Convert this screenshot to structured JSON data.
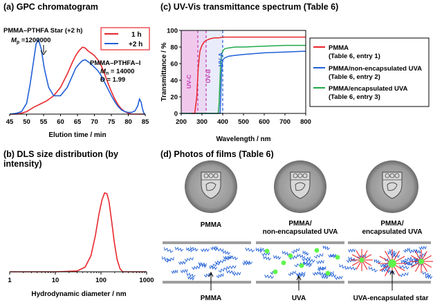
{
  "panels": {
    "a": {
      "title": "(a) GPC chromatogram"
    },
    "b": {
      "title_line1": "(b) DLS size distribution (by",
      "title_line2": "intensity)"
    },
    "c": {
      "title": "(c) UV-Vis transmittance spectrum (Table 6)"
    },
    "d": {
      "title": "(d) Photos of films (Table 6)"
    }
  },
  "colors": {
    "red": "#e8262b",
    "blue": "#1f5fd6",
    "green": "#1fa84a",
    "magenta": "#c13bb0",
    "axis": "#000000",
    "wall": "#9e9e9e",
    "dot": "#5ef54a"
  },
  "chart_data": [
    {
      "id": "gpc",
      "type": "line",
      "title": "GPC chromatogram",
      "xlabel": "Elution time / min",
      "ylabel": "",
      "xlim": [
        45,
        85
      ],
      "ylim": [
        0,
        1.05
      ],
      "xticks": [
        "45",
        "50",
        "55",
        "60",
        "65",
        "70",
        "75",
        "80",
        "85"
      ],
      "legend": {
        "placement": "top-right",
        "entries": [
          "1 h",
          "+2 h"
        ]
      },
      "annotations": {
        "star_label": "PMMA–PTHFA Star (+2 h)",
        "star_mp_sym": "M",
        "star_mp_sub": "p",
        "star_mp_val": " =1200000",
        "linear_label": "PMMA–PTHFA–I",
        "linear_mn_sym": "M",
        "linear_mn_sub": "n",
        "linear_mn_val": " = 14000",
        "linear_d": "Đ = 1.99"
      },
      "series": [
        {
          "name": "1 h",
          "color": "#e8262b",
          "x": [
            45,
            47,
            48.5,
            50,
            52,
            54,
            56,
            58,
            60,
            62,
            63.5,
            64.5,
            65.5,
            66.5,
            67.3,
            68,
            69,
            70,
            71,
            72,
            73,
            74,
            75,
            76,
            77,
            78,
            79,
            80,
            81,
            82,
            83,
            83.5,
            84,
            84.5,
            85
          ],
          "y": [
            0,
            0,
            0.01,
            0.03,
            0.08,
            0.12,
            0.16,
            0.22,
            0.32,
            0.48,
            0.62,
            0.7,
            0.76,
            0.8,
            0.79,
            0.76,
            0.73,
            0.7,
            0.65,
            0.58,
            0.48,
            0.37,
            0.27,
            0.18,
            0.11,
            0.06,
            0.03,
            0.01,
            0,
            0,
            0,
            0,
            0,
            0,
            0
          ]
        },
        {
          "name": "+2 h",
          "color": "#1f5fd6",
          "x": [
            45,
            47,
            48.5,
            50,
            51,
            52,
            52.8,
            53.5,
            54.3,
            55.2,
            56.5,
            58,
            60,
            62,
            63.5,
            64.5,
            65.5,
            66.5,
            67.3,
            68,
            69,
            70,
            71,
            72,
            73,
            74,
            75,
            76,
            77,
            78,
            79,
            80,
            81,
            82,
            82.8,
            83.3,
            83.8,
            84.2,
            84.6,
            85
          ],
          "y": [
            0,
            0.01,
            0.03,
            0.13,
            0.35,
            0.62,
            0.84,
            0.89,
            0.78,
            0.55,
            0.32,
            0.22,
            0.22,
            0.32,
            0.46,
            0.55,
            0.6,
            0.64,
            0.65,
            0.63,
            0.6,
            0.56,
            0.52,
            0.46,
            0.38,
            0.3,
            0.22,
            0.15,
            0.09,
            0.05,
            0.03,
            0.02,
            0.02,
            0.04,
            0.1,
            0.18,
            0.14,
            0.06,
            0.01,
            0
          ]
        }
      ]
    },
    {
      "id": "dls",
      "type": "line",
      "title": "DLS size distribution (by intensity)",
      "xlabel": "Hydrodynamic diameter / nm",
      "xscale": "log",
      "xlim": [
        1,
        1000
      ],
      "ylim": [
        0,
        1.05
      ],
      "xticks": [
        "1",
        "10",
        "100",
        "1000"
      ],
      "series": [
        {
          "name": "",
          "color": "#e8262b",
          "x": [
            1,
            10,
            30,
            45,
            60,
            75,
            90,
            105,
            120,
            135,
            150,
            170,
            195,
            225,
            260,
            300,
            1000
          ],
          "y": [
            0,
            0,
            0.01,
            0.06,
            0.2,
            0.45,
            0.72,
            0.9,
            0.99,
            0.98,
            0.88,
            0.65,
            0.38,
            0.16,
            0.04,
            0,
            0
          ]
        }
      ]
    },
    {
      "id": "uvvis",
      "type": "line",
      "title": "UV-Vis transmittance spectrum (Table 6)",
      "xlabel": "Wavelength / nm",
      "ylabel": "Transmittance / %",
      "xlim": [
        200,
        800
      ],
      "ylim": [
        0,
        100
      ],
      "xticks": [
        "200",
        "300",
        "400",
        "500",
        "600",
        "700",
        "800"
      ],
      "yticks": [
        "0",
        "20",
        "40",
        "60",
        "80",
        "100"
      ],
      "grid": false,
      "regions": [
        {
          "label": "UV-C",
          "from": 200,
          "to": 280
        },
        {
          "label": "UV-B",
          "from": 280,
          "to": 320
        },
        {
          "label": "UV-A",
          "from": 320,
          "to": 400
        }
      ],
      "legend": {
        "placement": "right-outside",
        "entries": [
          {
            "name": "PMMA",
            "detail": "(Table 6, entry 1)",
            "color": "#e8262b"
          },
          {
            "name": "PMMA/non-encapsulated UVA",
            "detail": "(Table 6, entry 2)",
            "color": "#1f5fd6"
          },
          {
            "name": "PMMA/encapsulated UVA",
            "detail": "(Table 6, entry 3)",
            "color": "#1fa84a"
          }
        ]
      },
      "series": [
        {
          "name": "PMMA",
          "color": "#e8262b",
          "x": [
            250,
            265,
            275,
            282,
            290,
            300,
            310,
            320,
            340,
            360,
            380,
            400,
            450,
            500,
            600,
            700,
            800
          ],
          "y": [
            0,
            0,
            20,
            55,
            75,
            82,
            86,
            88,
            90,
            91,
            91,
            92,
            92,
            92,
            92,
            92,
            92
          ]
        },
        {
          "name": "PMMA/non-encapsulated UVA",
          "color": "#1f5fd6",
          "x": [
            200,
            380,
            387,
            390,
            393,
            397,
            402,
            410,
            430,
            460,
            500,
            600,
            700,
            800
          ],
          "y": [
            0,
            0,
            0,
            20,
            45,
            60,
            65,
            67,
            69,
            70,
            71,
            73,
            74,
            75
          ]
        },
        {
          "name": "PMMA/encapsulated UVA",
          "color": "#1fa84a",
          "x": [
            200,
            378,
            382,
            386,
            390,
            395,
            402,
            410,
            430,
            460,
            500,
            600,
            700,
            800
          ],
          "y": [
            0,
            0,
            10,
            35,
            60,
            72,
            76,
            78,
            79,
            80,
            80,
            81,
            82,
            82
          ]
        }
      ]
    }
  ],
  "photos": {
    "labels": [
      {
        "line1": "PMMA",
        "line2": ""
      },
      {
        "line1": "PMMA/",
        "line2": "non-encapsulated UVA"
      },
      {
        "line1": "PMMA/",
        "line2": "encapsulated UVA"
      }
    ]
  },
  "schematics": {
    "labels": [
      "PMMA",
      "UVA",
      "UVA-encapsulated star"
    ]
  }
}
